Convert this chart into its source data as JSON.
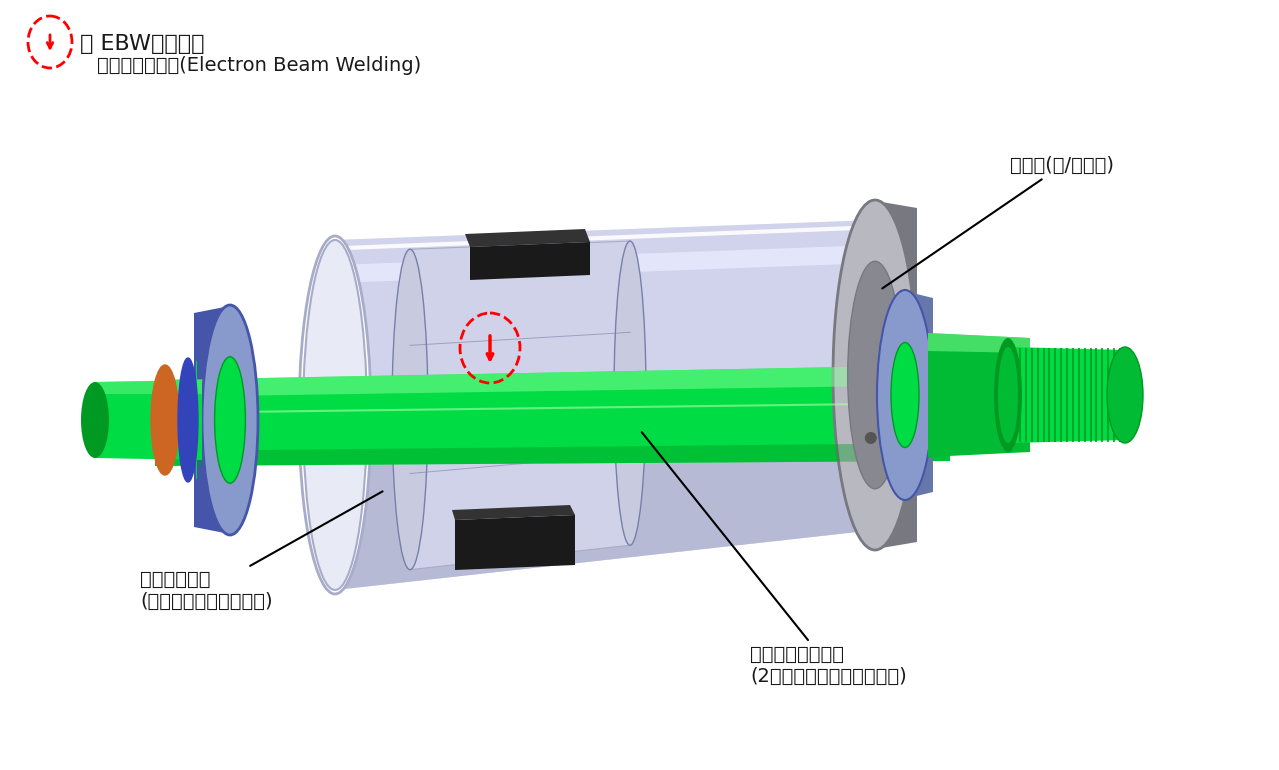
{
  "background_color": "#ffffff",
  "legend_symbol_text": "： EBW接合箇所",
  "legend_sub_text": "電子ビーム溶接(Electron Beam Welding)",
  "text_color": "#1a1a1a",
  "font_size_large": 16,
  "font_size_medium": 14,
  "annotation_endplate_label": "端面板(鉄/アルミ)",
  "annotation_core_label": "ローターコア\n(積層プレス＋磁石封止)",
  "annotation_shaft_label": "ローターシャフト\n(2ピース：鍛造品＋鍛造品)",
  "colors": {
    "body_light": "#c5c8e2",
    "body_highlight": "#dddff5",
    "body_mid": "#a8acc8",
    "body_dark": "#7880a8",
    "body_shadow": "#9098b8",
    "end_plate_light": "#b8b8c0",
    "end_plate_mid": "#989898",
    "end_plate_dark": "#787880",
    "end_plate_inner": "#888890",
    "green_bright": "#00dd44",
    "green_mid": "#00bb33",
    "green_dark": "#009922",
    "green_highlight": "#88ff99",
    "blue_hub_light": "#8899cc",
    "blue_hub_mid": "#6677aa",
    "blue_hub_dark": "#4455aa",
    "blue_ring": "#3344bb",
    "orange_ring": "#cc6622",
    "black_magnet": "#1a1a1a",
    "dark_gray": "#333333",
    "white_edge": "#f0f0f8",
    "inner_face": "#d0d2ea",
    "cut_face": "#c8cae0"
  }
}
